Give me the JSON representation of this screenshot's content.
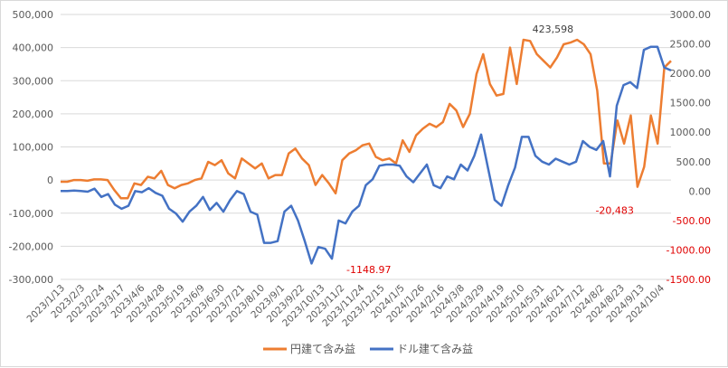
{
  "chart_data": {
    "type": "line",
    "title": "",
    "xlabel": "",
    "ylabel": "",
    "y_left": {
      "ylim": [
        -300000,
        500000
      ],
      "ticks": [
        -300000,
        -200000,
        -100000,
        0,
        100000,
        200000,
        300000,
        400000,
        500000
      ],
      "tick_labels": [
        "-300,000",
        "-200,000",
        "-100,000",
        "0",
        "100,000",
        "200,000",
        "300,000",
        "400,000",
        "500,000"
      ]
    },
    "y_right": {
      "ylim": [
        -1500,
        3000
      ],
      "ticks": [
        -1500,
        -1000,
        -500,
        0,
        500,
        1000,
        1500,
        2000,
        2500,
        3000
      ],
      "tick_labels": [
        "-1500.00",
        "-1000.00",
        "-500.00",
        "0.00",
        "500.00",
        "1000.00",
        "1500.00",
        "2000.00",
        "2500.00",
        "3000.00"
      ],
      "negative_color": "#e00000"
    },
    "x_tick_labels": [
      "2023/1/13",
      "2023/2/3",
      "2023/2/24",
      "2023/3/17",
      "2023/4/6",
      "2023/4/28",
      "2023/5/19",
      "2023/6/9",
      "2023/6/30",
      "2023/7/21",
      "2023/8/10",
      "2023/9/1",
      "2023/9/22",
      "2023/10/13",
      "2023/11/2",
      "2023/11/24",
      "2023/12/15",
      "2024/1/5",
      "2024/1/26",
      "2024/2/16",
      "2024/3/8",
      "2024/3/29",
      "2024/4/19",
      "2024/5/10",
      "2024/5/31",
      "2024/6/21",
      "2024/7/12",
      "2024/8/2",
      "2024/8/23",
      "2024/9/13",
      "2024/10/4"
    ],
    "series": [
      {
        "name": "円建て含み益",
        "axis": "left",
        "color": "#ed7d31",
        "values": [
          -5000,
          -5000,
          0,
          0,
          -2000,
          2000,
          2000,
          0,
          -30000,
          -55000,
          -55000,
          -10000,
          -15000,
          10000,
          5000,
          28000,
          -15000,
          -25000,
          -15000,
          -10000,
          0,
          5000,
          55000,
          45000,
          60000,
          20000,
          5000,
          65000,
          50000,
          35000,
          50000,
          5000,
          15000,
          15000,
          80000,
          95000,
          65000,
          45000,
          -15000,
          15000,
          -10000,
          -40000,
          60000,
          80000,
          90000,
          105000,
          110000,
          70000,
          60000,
          65000,
          50000,
          120000,
          85000,
          135000,
          155000,
          170000,
          160000,
          175000,
          230000,
          210000,
          160000,
          200000,
          320000,
          380000,
          290000,
          255000,
          260000,
          400000,
          290000,
          423598,
          420000,
          380000,
          360000,
          340000,
          370000,
          410000,
          415000,
          423598,
          410000,
          380000,
          270000,
          50000,
          50000,
          180000,
          110000,
          195000,
          -20483,
          40000,
          195000,
          110000,
          340000,
          360000
        ]
      },
      {
        "name": "ドル建て含み益",
        "axis": "right",
        "color": "#4472c4",
        "values": [
          0,
          0,
          10,
          0,
          -10,
          40,
          -100,
          -50,
          -230,
          -300,
          -250,
          0,
          -20,
          50,
          -30,
          -80,
          -300,
          -380,
          -520,
          -350,
          -250,
          -100,
          -320,
          -200,
          -350,
          -150,
          0,
          -50,
          -350,
          -400,
          -880,
          -880,
          -850,
          -350,
          -250,
          -500,
          -850,
          -1230,
          -950,
          -980,
          -1148.97,
          -500,
          -550,
          -350,
          -250,
          100,
          200,
          430,
          450,
          450,
          430,
          250,
          150,
          300,
          450,
          100,
          50,
          250,
          200,
          450,
          350,
          600,
          960,
          400,
          -150,
          -250,
          100,
          400,
          920,
          920,
          600,
          500,
          450,
          550,
          500,
          450,
          500,
          850,
          750,
          700,
          850,
          250,
          1450,
          1800,
          1850,
          1750,
          2400,
          2450,
          2450,
          2100,
          2050
        ]
      }
    ],
    "annotations": [
      {
        "text": "423,598",
        "series": 0,
        "index": 77
      },
      {
        "text": "-20,483",
        "series": 0,
        "index": 86
      },
      {
        "text": "-1148.97",
        "series": 1,
        "index": 40
      }
    ],
    "legend": {
      "position": "bottom",
      "entries": [
        "円建て含み益",
        "ドル建て含み益"
      ]
    },
    "grid": "horizontal"
  }
}
